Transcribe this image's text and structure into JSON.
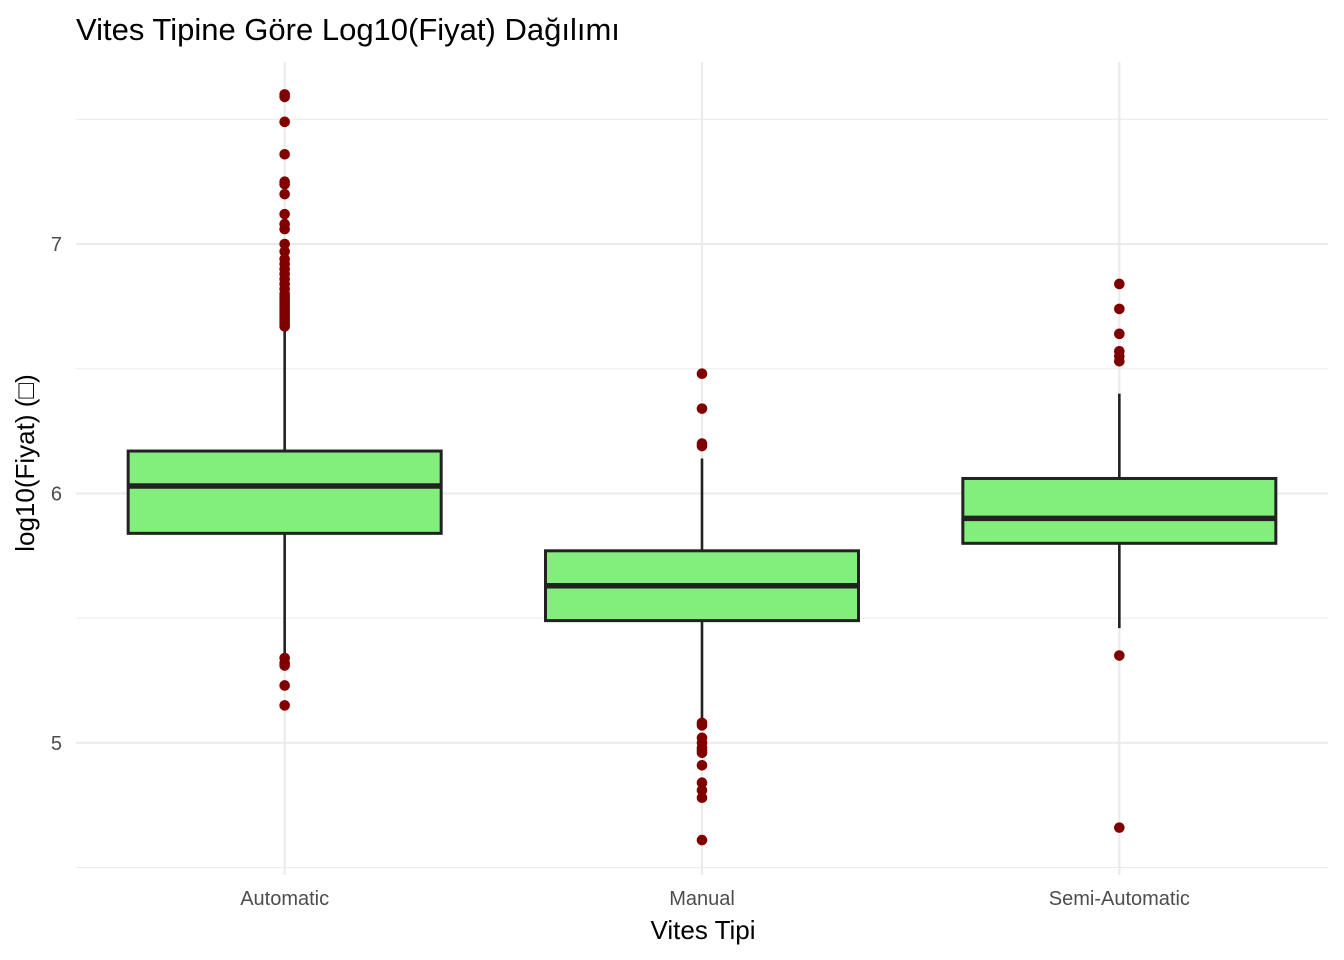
{
  "chart_data": {
    "type": "boxplot",
    "title": "Vites Tipine Göre Log10(Fiyat) Dağılımı",
    "xlabel": "Vites Tipi",
    "ylabel": "log10(Fiyat) (□)",
    "ylim": [
      4.47,
      7.73
    ],
    "yticks": [
      5,
      6,
      7
    ],
    "categories": [
      "Automatic",
      "Manual",
      "Semi-Automatic"
    ],
    "grid": true,
    "box_fill": "#82ee7c",
    "box_stroke": "#222222",
    "outlier_color": "#800000",
    "grid_color": "#ebebeb",
    "boxes": [
      {
        "category": "Automatic",
        "whisker_low": 5.35,
        "q1": 5.84,
        "median": 6.03,
        "q3": 6.17,
        "whisker_high": 6.66,
        "outliers": [
          7.6,
          7.59,
          7.49,
          7.36,
          7.25,
          7.24,
          7.2,
          7.12,
          7.08,
          7.06,
          7.0,
          6.97,
          6.94,
          6.92,
          6.9,
          6.88,
          6.86,
          6.84,
          6.82,
          6.8,
          6.79,
          6.78,
          6.77,
          6.76,
          6.75,
          6.74,
          6.73,
          6.72,
          6.71,
          6.7,
          6.69,
          6.68,
          6.67,
          5.34,
          5.32,
          5.31,
          5.23,
          5.15
        ]
      },
      {
        "category": "Manual",
        "whisker_low": 5.08,
        "q1": 5.49,
        "median": 5.63,
        "q3": 5.77,
        "whisker_high": 6.14,
        "outliers": [
          6.48,
          6.34,
          6.2,
          6.19,
          5.08,
          5.07,
          5.02,
          5.0,
          4.98,
          4.97,
          4.96,
          4.91,
          4.84,
          4.81,
          4.78,
          4.61
        ]
      },
      {
        "category": "Semi-Automatic",
        "whisker_low": 5.46,
        "q1": 5.8,
        "median": 5.9,
        "q3": 6.06,
        "whisker_high": 6.4,
        "outliers": [
          6.84,
          6.74,
          6.64,
          6.57,
          6.55,
          6.53,
          5.35,
          4.66
        ]
      }
    ]
  }
}
